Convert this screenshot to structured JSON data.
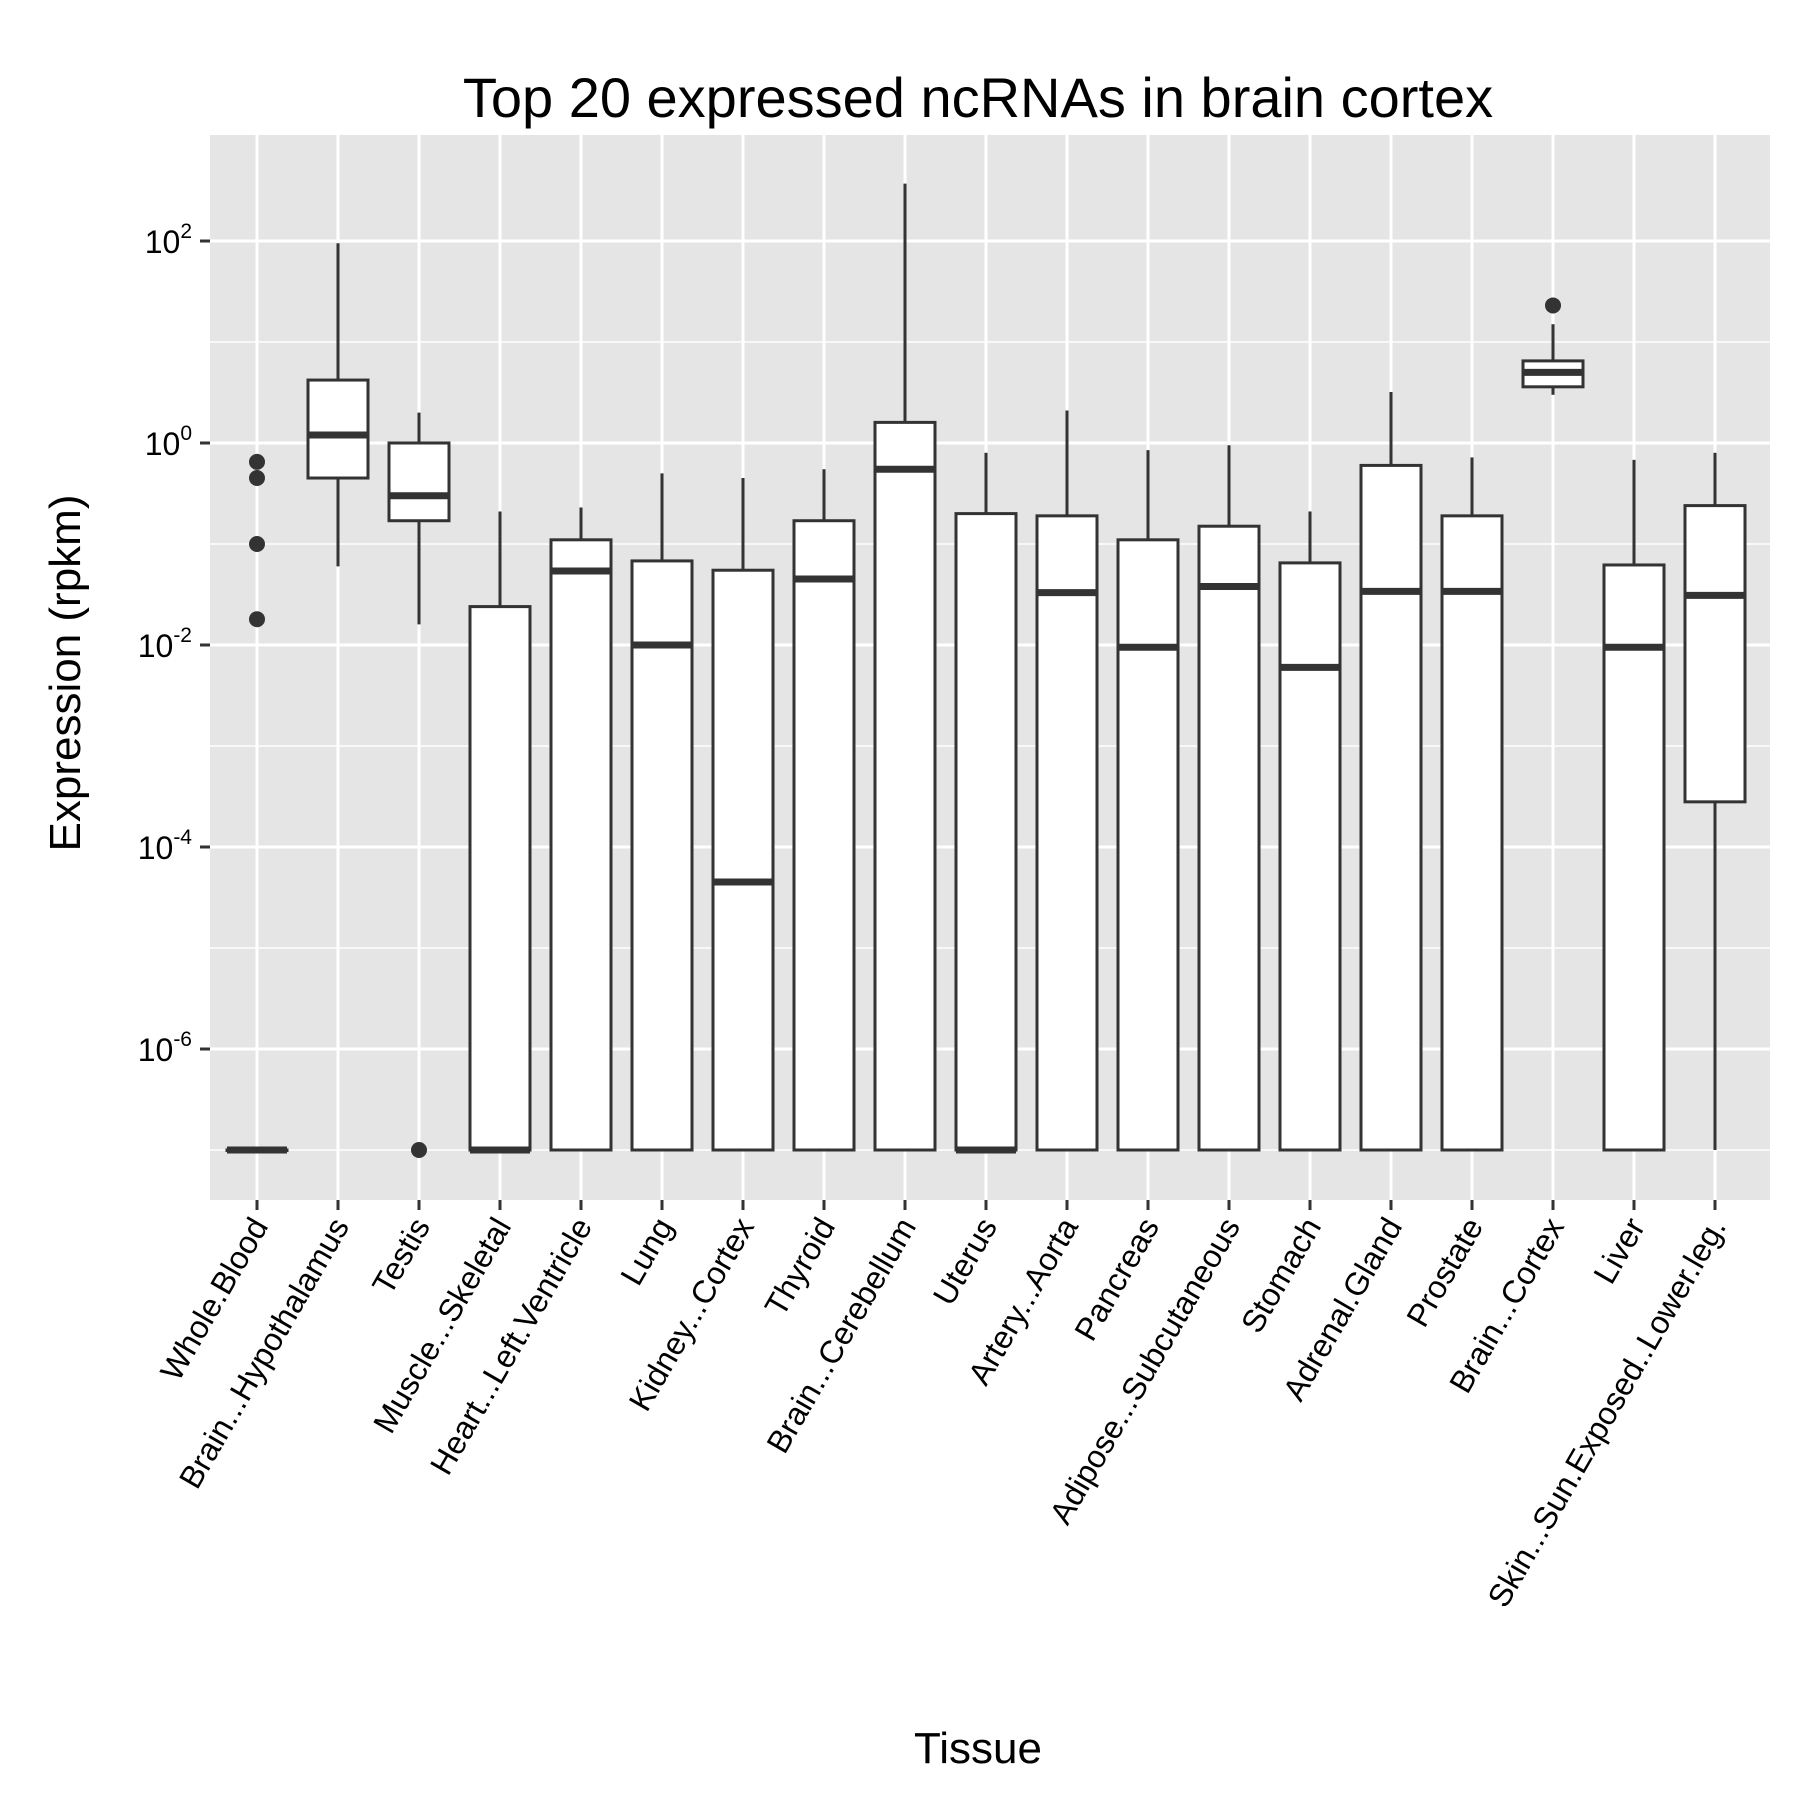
{
  "chart_data": {
    "type": "box",
    "title": "Top 20 expressed ncRNAs in brain cortex",
    "xlabel": "Tissue",
    "ylabel": "Expression (rpkm)",
    "y_scale": "log10",
    "ylim": [
      1e-08,
      1000
    ],
    "grid": true,
    "legend": "none",
    "y_ticks": [
      {
        "value": 1e-06,
        "base": "10",
        "exp": "-6"
      },
      {
        "value": 0.0001,
        "base": "10",
        "exp": "-4"
      },
      {
        "value": 0.01,
        "base": "10",
        "exp": "-2"
      },
      {
        "value": 1,
        "base": "10",
        "exp": "0"
      },
      {
        "value": 100,
        "base": "10",
        "exp": "2"
      }
    ],
    "categories": [
      "Whole.Blood",
      "Brain...Hypothalamus",
      "Testis",
      "Muscle...Skeletal",
      "Heart...Left.Ventricle",
      "Lung",
      "Kidney...Cortex",
      "Thyroid",
      "Brain...Cerebellum",
      "Uterus",
      "Artery...Aorta",
      "Pancreas",
      "Adipose...Subcutaneous",
      "Stomach",
      "Adrenal.Gland",
      "Prostate",
      "Brain...Cortex",
      "Liver",
      "Skin...Sun.Exposed..Lower.leg."
    ],
    "boxes": [
      {
        "min": 1e-07,
        "q1": 1e-07,
        "median": 1e-07,
        "q3": 1e-07,
        "max": 1e-07,
        "outliers": [
          0.018,
          0.1,
          0.45,
          0.65
        ]
      },
      {
        "min": 0.06,
        "q1": 0.45,
        "median": 1.2,
        "q3": 4.2,
        "max": 95,
        "outliers": []
      },
      {
        "min": 0.016,
        "q1": 0.17,
        "median": 0.3,
        "q3": 1.0,
        "max": 2.0,
        "outliers": [
          1e-07
        ]
      },
      {
        "min": 1e-07,
        "q1": 1e-07,
        "median": 1e-07,
        "q3": 0.024,
        "max": 0.21,
        "outliers": []
      },
      {
        "min": 1e-07,
        "q1": 1e-07,
        "median": 0.054,
        "q3": 0.11,
        "max": 0.23,
        "outliers": []
      },
      {
        "min": 1e-07,
        "q1": 1e-07,
        "median": 0.01,
        "q3": 0.068,
        "max": 0.5,
        "outliers": []
      },
      {
        "min": 1e-07,
        "q1": 1e-07,
        "median": 4.5e-05,
        "q3": 0.055,
        "max": 0.45,
        "outliers": []
      },
      {
        "min": 1e-07,
        "q1": 1e-07,
        "median": 0.045,
        "q3": 0.17,
        "max": 0.55,
        "outliers": []
      },
      {
        "min": 1e-07,
        "q1": 1e-07,
        "median": 0.55,
        "q3": 1.6,
        "max": 370,
        "outliers": []
      },
      {
        "min": 1e-07,
        "q1": 1e-07,
        "median": 1e-07,
        "q3": 0.2,
        "max": 0.8,
        "outliers": []
      },
      {
        "min": 1e-07,
        "q1": 1e-07,
        "median": 0.033,
        "q3": 0.19,
        "max": 2.1,
        "outliers": []
      },
      {
        "min": 1e-07,
        "q1": 1e-07,
        "median": 0.0095,
        "q3": 0.11,
        "max": 0.85,
        "outliers": []
      },
      {
        "min": 1e-07,
        "q1": 1e-07,
        "median": 0.038,
        "q3": 0.15,
        "max": 0.95,
        "outliers": []
      },
      {
        "min": 1e-07,
        "q1": 1e-07,
        "median": 0.006,
        "q3": 0.065,
        "max": 0.21,
        "outliers": []
      },
      {
        "min": 1e-07,
        "q1": 1e-07,
        "median": 0.034,
        "q3": 0.6,
        "max": 3.2,
        "outliers": []
      },
      {
        "min": 1e-07,
        "q1": 1e-07,
        "median": 0.034,
        "q3": 0.19,
        "max": 0.72,
        "outliers": []
      },
      {
        "min": 3.0,
        "q1": 3.6,
        "median": 5.0,
        "q3": 6.5,
        "max": 15,
        "outliers": [
          23
        ]
      },
      {
        "min": 1e-07,
        "q1": 1e-07,
        "median": 0.0095,
        "q3": 0.062,
        "max": 0.68,
        "outliers": []
      },
      {
        "min": 1e-07,
        "q1": 0.00028,
        "median": 0.031,
        "q3": 0.24,
        "max": 0.8,
        "outliers": []
      }
    ]
  },
  "style": {
    "panel_bg": "#e5e5e5",
    "grid_color": "#ffffff",
    "box_stroke": "#333333",
    "box_fill": "#ffffff"
  }
}
